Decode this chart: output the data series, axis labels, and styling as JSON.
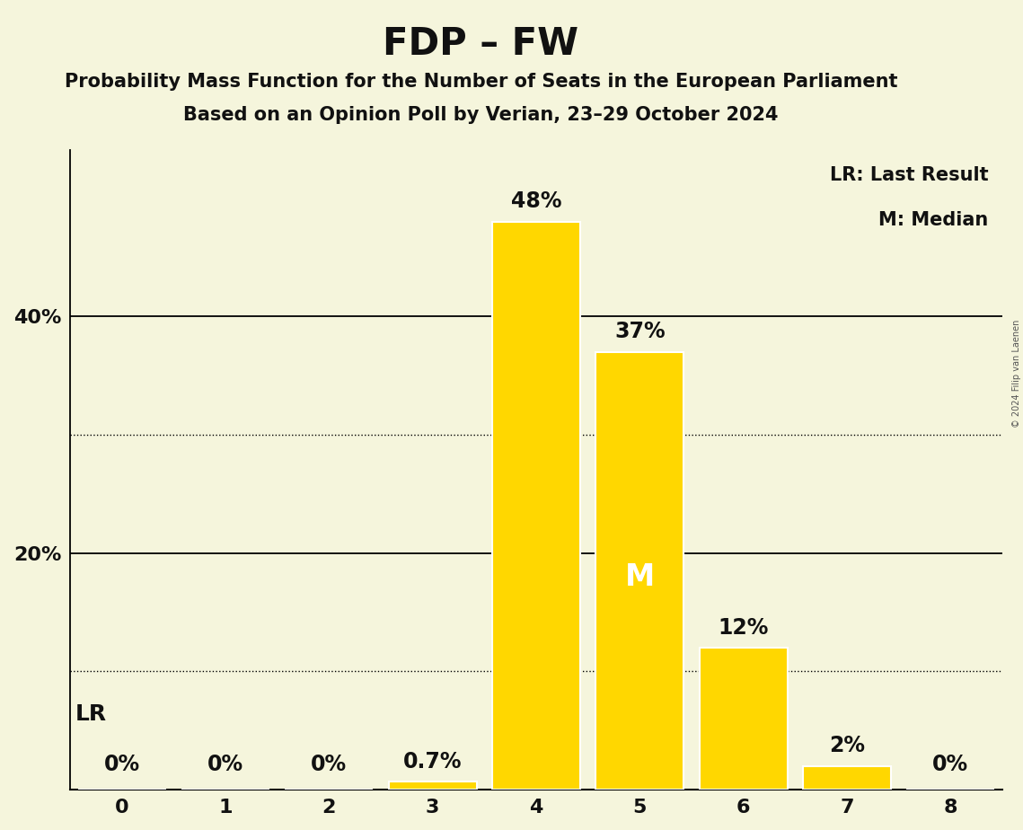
{
  "title": "FDP – FW",
  "subtitle1": "Probability Mass Function for the Number of Seats in the European Parliament",
  "subtitle2": "Based on an Opinion Poll by Verian, 23–29 October 2024",
  "copyright": "© 2024 Filip van Laenen",
  "categories": [
    0,
    1,
    2,
    3,
    4,
    5,
    6,
    7,
    8
  ],
  "values": [
    0.0,
    0.0,
    0.0,
    0.7,
    48.0,
    37.0,
    12.0,
    2.0,
    0.0
  ],
  "bar_color": "#FFD700",
  "bar_edgecolor": "#FFFFFF",
  "background_color": "#F5F5DC",
  "text_color": "#111111",
  "median_seat": 5,
  "last_result_seat": 0,
  "bar_labels": [
    "0%",
    "0%",
    "0%",
    "0.7%",
    "48%",
    "37%",
    "12%",
    "2%",
    "0%"
  ],
  "lr_label": "LR",
  "median_label": "M",
  "legend_lr": "LR: Last Result",
  "legend_m": "M: Median",
  "ylim": [
    0,
    54
  ],
  "ytick_vals": [
    20,
    40
  ],
  "ytick_labels": [
    "20%",
    "40%"
  ],
  "solid_gridlines": [
    20,
    40
  ],
  "dotted_gridlines": [
    10,
    30
  ],
  "title_fontsize": 30,
  "subtitle_fontsize": 15,
  "tick_fontsize": 16,
  "annotation_fontsize": 17,
  "median_fontsize": 24,
  "lr_fontsize": 18,
  "legend_fontsize": 15
}
